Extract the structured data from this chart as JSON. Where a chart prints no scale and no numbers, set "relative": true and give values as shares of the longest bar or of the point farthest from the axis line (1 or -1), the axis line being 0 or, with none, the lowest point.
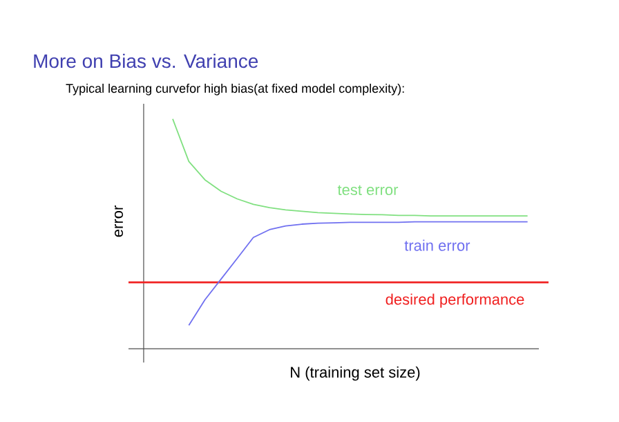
{
  "chart_data": {
    "type": "line",
    "title": "More on Bias vs. Variance",
    "subtitle": "Typical learning curvefor high bias(at fixed model complexity):",
    "xlabel": "N (training set size)",
    "ylabel": "error",
    "relative": true,
    "categories": [
      null,
      null,
      null,
      null,
      null,
      null,
      null,
      null,
      null,
      null,
      null,
      null,
      null,
      null,
      null,
      null,
      null,
      null,
      null,
      null,
      null,
      null,
      null
    ],
    "series": [
      {
        "name": "test error",
        "color": "#80e080",
        "values": [
          1.0,
          0.815,
          0.735,
          0.685,
          0.652,
          0.628,
          0.614,
          0.604,
          0.598,
          0.592,
          0.589,
          0.586,
          0.584,
          0.583,
          0.58,
          0.58,
          0.578,
          0.578,
          0.578,
          0.578,
          0.578,
          0.578,
          0.578
        ]
      },
      {
        "name": "train error",
        "color": "#7070f0",
        "values": [
          null,
          0.102,
          0.213,
          0.303,
          0.393,
          0.484,
          0.518,
          0.534,
          0.542,
          0.546,
          0.548,
          0.55,
          0.55,
          0.55,
          0.55,
          0.552,
          0.552,
          0.552,
          0.552,
          0.552,
          0.552,
          0.552,
          0.552
        ]
      }
    ],
    "ref_lines": [
      {
        "axis": "y",
        "value": 0.289,
        "label": "desired performance",
        "color": "#f02020"
      }
    ]
  }
}
